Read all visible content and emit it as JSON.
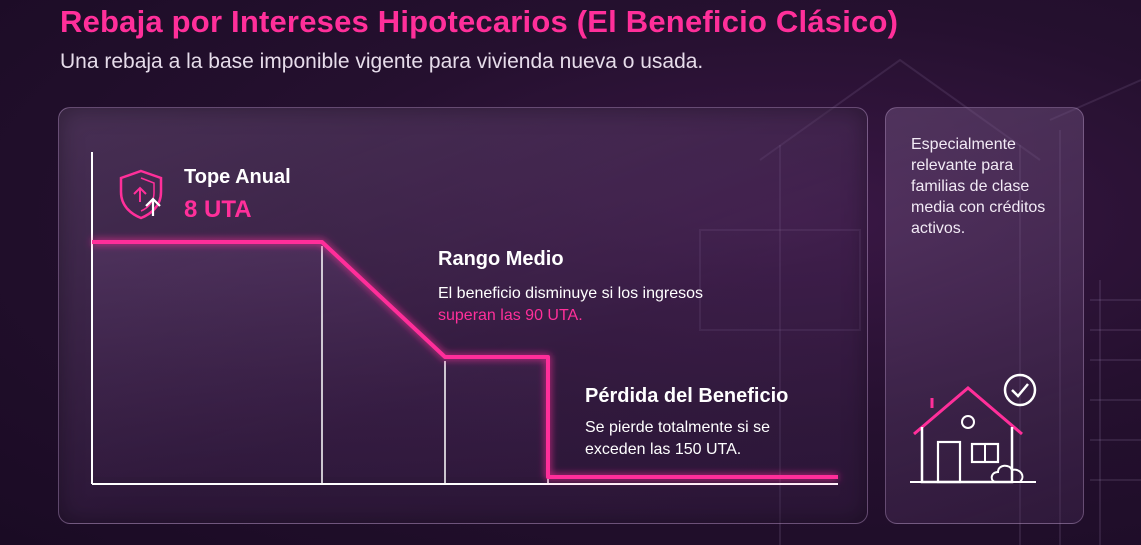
{
  "header": {
    "title": "Rebaja por Intereses Hipotecarios (El Beneficio Clásico)",
    "subtitle": "Una rebaja a la base imponible vigente para vivienda nueva o usada."
  },
  "chart": {
    "tope": {
      "title": "Tope Anual",
      "value": "8 UTA"
    },
    "rango": {
      "title": "Rango Medio",
      "text_plain": "El beneficio disminuye si los ingresos",
      "text_highlight": "superan las 90 UTA."
    },
    "perdida": {
      "title": "Pérdida del Beneficio",
      "text_line1": "Se pierde totalmente si se",
      "text_line2": "exceden las 150 UTA."
    }
  },
  "side": {
    "text": "Especialmente relevante para familias de clase media con créditos activos."
  },
  "icons": {
    "shield": "shield-up-arrow-icon",
    "house": "house-checkmark-icon"
  },
  "colors": {
    "accent": "#ff2f9a",
    "background": "#25102f",
    "text": "#ffffff"
  }
}
